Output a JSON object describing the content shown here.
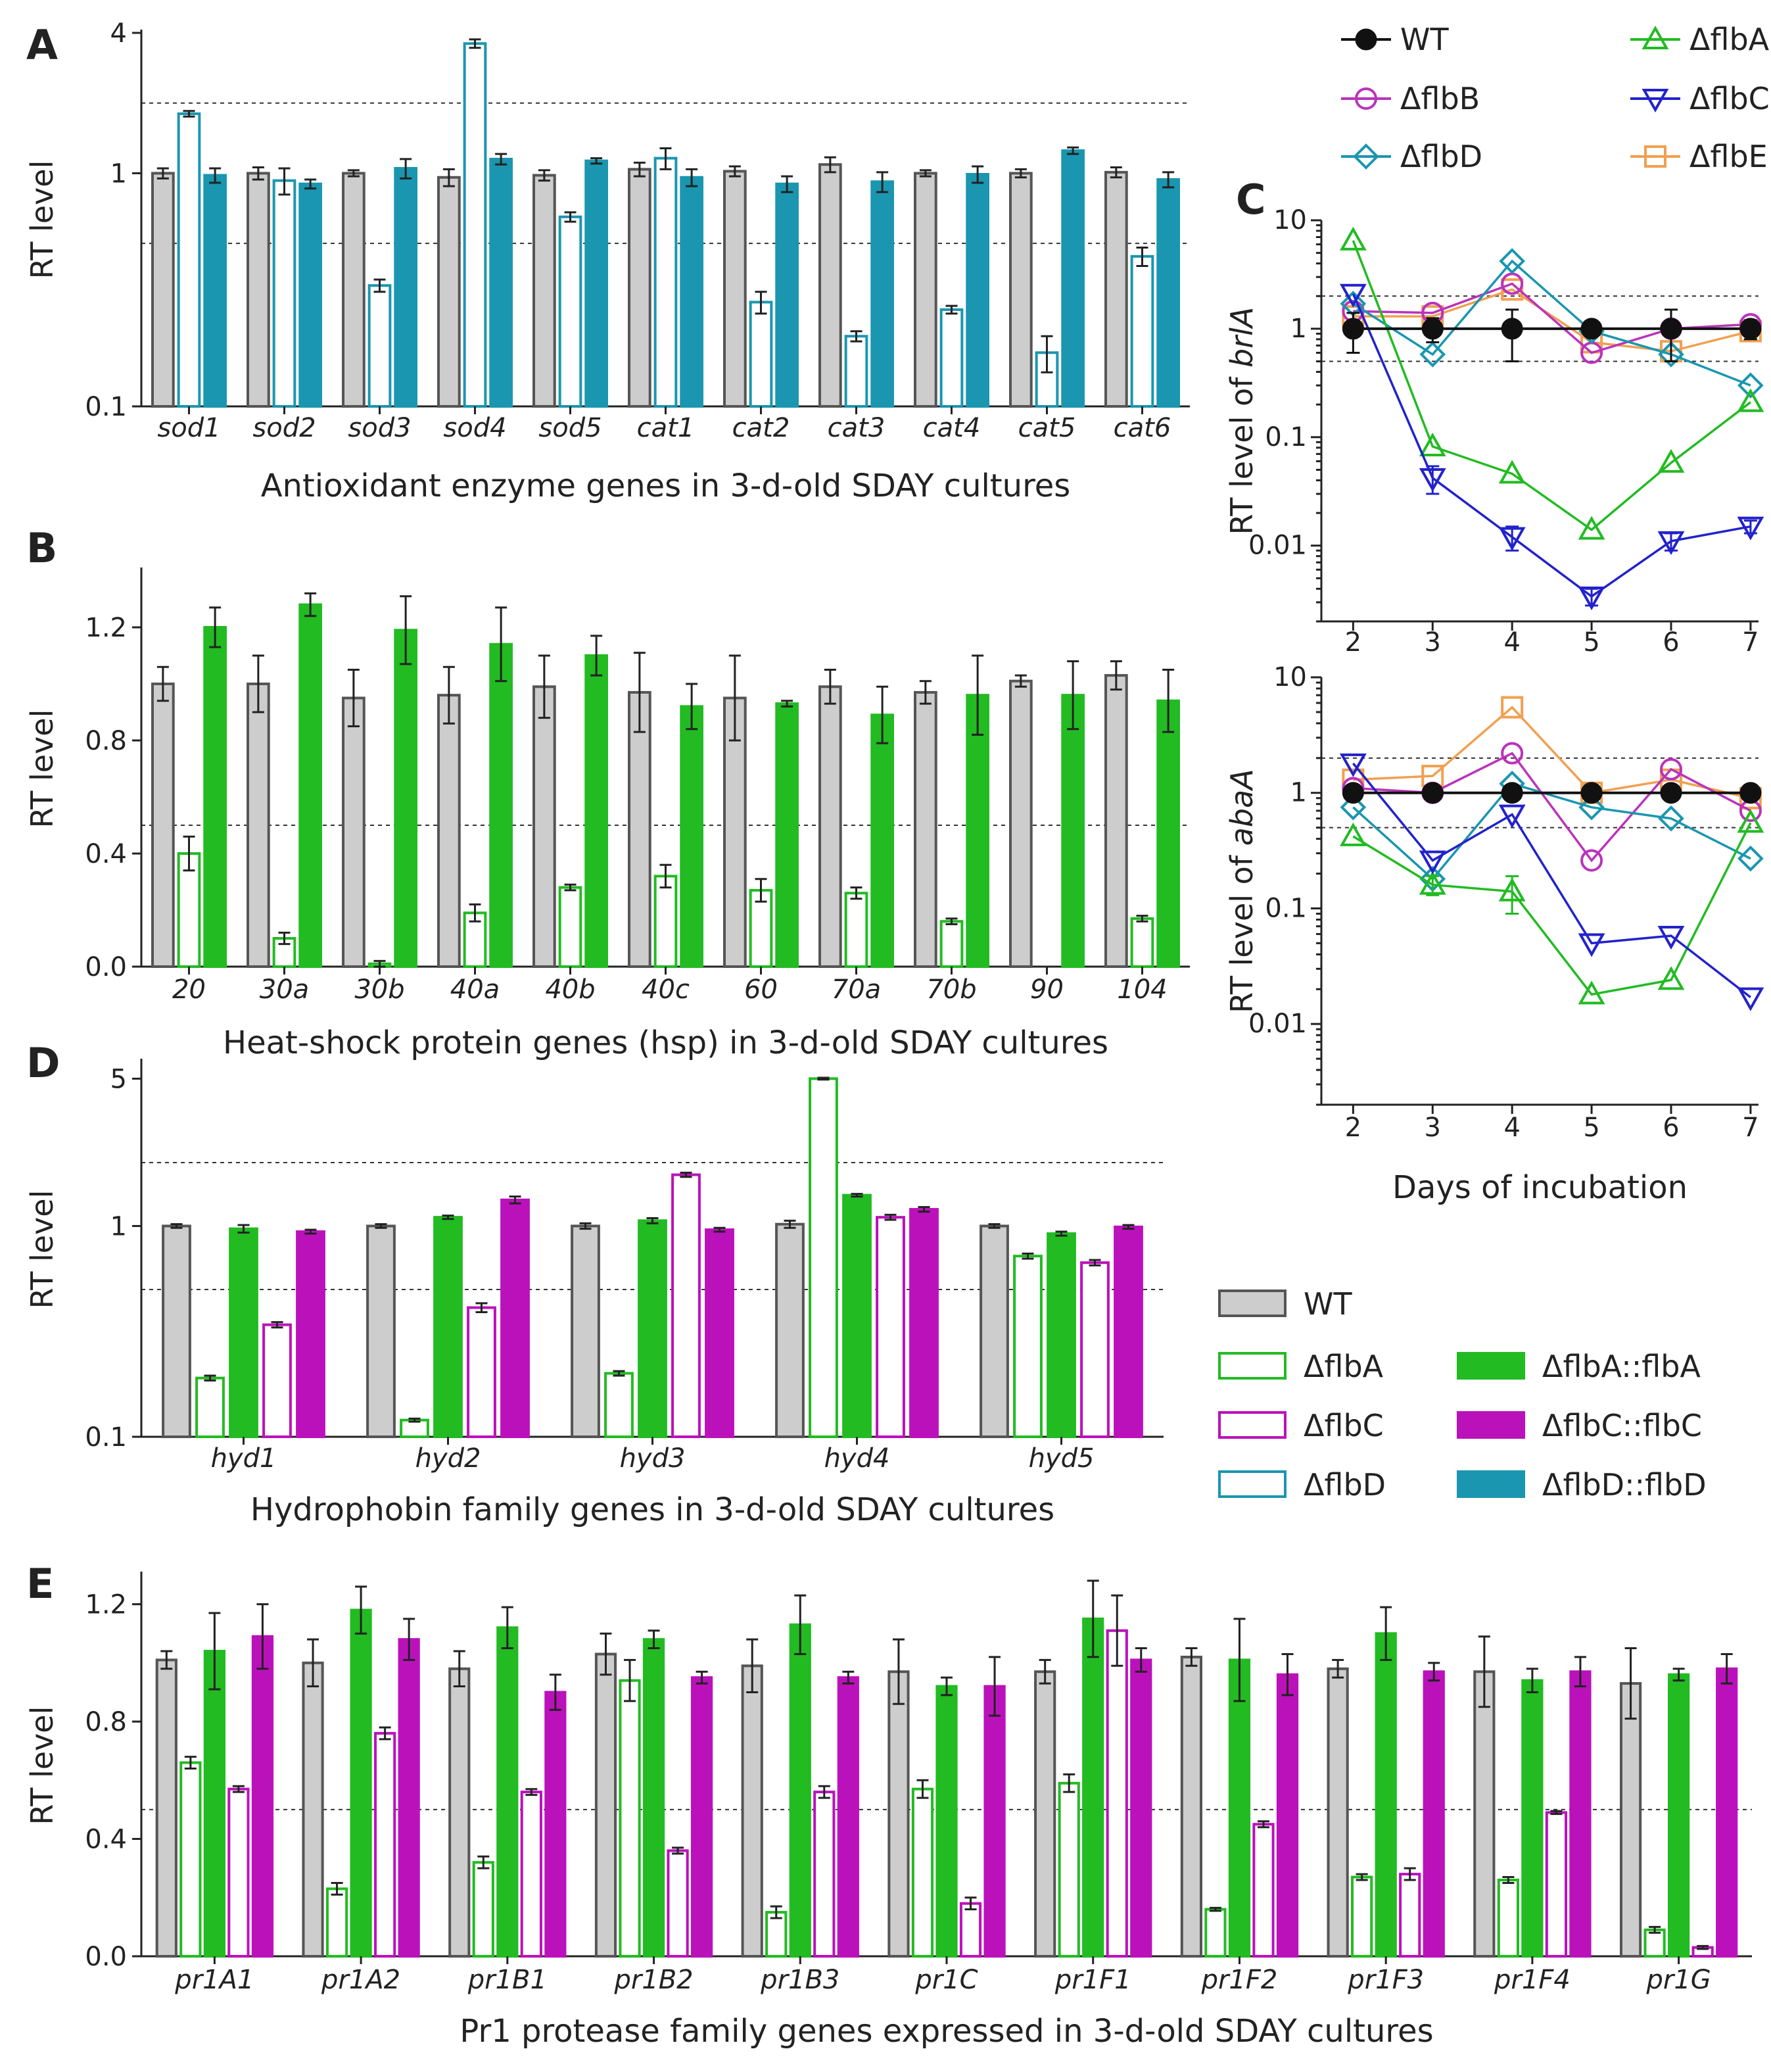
{
  "colors": {
    "WT": "#cdcdcd",
    "WT_stroke": "#555555",
    "flbA": "#22bb22",
    "flbC": "#bb11bb",
    "flbD": "#1a96b0",
    "flbB": "#bb33bb",
    "flbE": "#f0a050",
    "flbC_line": "#2222cc"
  },
  "legend_bar": {
    "items": [
      {
        "key": "WT",
        "label": "WT",
        "style": "wt"
      },
      {
        "key": "flbA",
        "label": "ΔflbA",
        "style": "open"
      },
      {
        "key": "flbC",
        "label": "ΔflbC",
        "style": "open"
      },
      {
        "key": "flbD",
        "label": "ΔflbD",
        "style": "open"
      },
      {
        "key": "flbA",
        "label": "ΔflbA::flbA",
        "style": "filled"
      },
      {
        "key": "flbC",
        "label": "ΔflbC::flbC",
        "style": "filled"
      },
      {
        "key": "flbD",
        "label": "ΔflbD::flbD",
        "style": "filled"
      }
    ]
  },
  "legend_line": {
    "items": [
      {
        "key": "WT",
        "label": "WT",
        "marker": "dot"
      },
      {
        "key": "flbB",
        "label": "ΔflbB",
        "marker": "circle"
      },
      {
        "key": "flbD",
        "label": "ΔflbD",
        "marker": "diamond"
      },
      {
        "key": "flbA",
        "label": "ΔflbA",
        "marker": "tri-up"
      },
      {
        "key": "flbC_line",
        "label": "ΔflbC",
        "marker": "tri-down"
      },
      {
        "key": "flbE",
        "label": "ΔflbE",
        "marker": "square"
      }
    ]
  },
  "chart_data": [
    {
      "panel": "A",
      "type": "bar",
      "scale": "log",
      "ylabel": "RT level",
      "ylim": [
        0.1,
        4
      ],
      "yticks": [
        "0.1",
        "1",
        "4"
      ],
      "ytick_values": [
        0.1,
        1,
        4
      ],
      "dashed": [
        0.5,
        2
      ],
      "title": "Antioxidant enzyme genes in 3-d-old SDAY cultures",
      "categories": [
        "sod1",
        "sod2",
        "sod3",
        "sod4",
        "sod5",
        "cat1",
        "cat2",
        "cat3",
        "cat4",
        "cat5",
        "cat6"
      ],
      "series": [
        {
          "name": "WT",
          "key": "WT",
          "style": "wt",
          "values": [
            1.0,
            1.0,
            1.0,
            0.96,
            0.98,
            1.04,
            1.02,
            1.09,
            1.0,
            1.0,
            1.01
          ],
          "err": [
            0.05,
            0.06,
            0.03,
            0.08,
            0.05,
            0.07,
            0.05,
            0.08,
            0.03,
            0.04,
            0.05
          ]
        },
        {
          "name": "ΔflbD",
          "key": "flbD",
          "style": "open",
          "values": [
            1.8,
            0.93,
            0.33,
            3.6,
            0.65,
            1.16,
            0.28,
            0.2,
            0.26,
            0.17,
            0.44
          ],
          "err": [
            0.05,
            0.12,
            0.02,
            0.15,
            0.03,
            0.12,
            0.03,
            0.01,
            0.01,
            0.03,
            0.04
          ]
        },
        {
          "name": "ΔflbD::flbD",
          "key": "flbD",
          "style": "filled",
          "values": [
            0.98,
            0.9,
            1.05,
            1.15,
            1.13,
            0.96,
            0.9,
            0.92,
            0.99,
            1.25,
            0.94
          ],
          "err": [
            0.07,
            0.04,
            0.1,
            0.06,
            0.03,
            0.08,
            0.07,
            0.09,
            0.08,
            0.04,
            0.07
          ]
        }
      ]
    },
    {
      "panel": "B",
      "type": "bar",
      "scale": "linear",
      "ylabel": "RT level",
      "ylim": [
        0,
        1.4
      ],
      "yticks": [
        "0.0",
        "0.4",
        "0.8",
        "1.2"
      ],
      "ytick_values": [
        0,
        0.4,
        0.8,
        1.2
      ],
      "dashed": [
        0.5
      ],
      "title": "Heat-shock protein genes (hsp) in  3-d-old SDAY cultures",
      "categories": [
        "20",
        "30a",
        "30b",
        "40a",
        "40b",
        "40c",
        "60",
        "70a",
        "70b",
        "90",
        "104"
      ],
      "series": [
        {
          "name": "WT",
          "key": "WT",
          "style": "wt",
          "values": [
            1.0,
            1.0,
            0.95,
            0.96,
            0.99,
            0.97,
            0.95,
            0.99,
            0.97,
            1.01,
            1.03
          ],
          "err": [
            0.06,
            0.1,
            0.1,
            0.1,
            0.11,
            0.14,
            0.15,
            0.06,
            0.04,
            0.02,
            0.05
          ]
        },
        {
          "name": "ΔflbA",
          "key": "flbA",
          "style": "open",
          "values": [
            0.4,
            0.1,
            0.01,
            0.19,
            0.28,
            0.32,
            0.27,
            0.26,
            0.16,
            0.0,
            0.17
          ],
          "err": [
            0.06,
            0.02,
            0.01,
            0.03,
            0.01,
            0.04,
            0.04,
            0.02,
            0.01,
            0.0,
            0.01
          ]
        },
        {
          "name": "ΔflbA::flbA",
          "key": "flbA",
          "style": "filled",
          "values": [
            1.2,
            1.28,
            1.19,
            1.14,
            1.1,
            0.92,
            0.93,
            0.89,
            0.96,
            0.96,
            0.94
          ],
          "err": [
            0.07,
            0.04,
            0.12,
            0.13,
            0.07,
            0.08,
            0.01,
            0.1,
            0.14,
            0.12,
            0.11
          ]
        }
      ]
    },
    {
      "panel": "D",
      "type": "bar",
      "scale": "log",
      "ylabel": "RT level",
      "ylim": [
        0.1,
        6
      ],
      "yticks": [
        "0.1",
        "1",
        "5"
      ],
      "ytick_values": [
        0.1,
        1,
        5
      ],
      "dashed": [
        0.5,
        2
      ],
      "title": "Hydrophobin family  genes  in 3-d-old SDAY cultures",
      "categories": [
        "hyd1",
        "hyd2",
        "hyd3",
        "hyd4",
        "hyd5"
      ],
      "series": [
        {
          "name": "WT",
          "key": "WT",
          "style": "wt",
          "values": [
            1.0,
            1.0,
            1.0,
            1.02,
            1.0
          ],
          "err": [
            0.02,
            0.02,
            0.03,
            0.04,
            0.02
          ]
        },
        {
          "name": "ΔflbA",
          "key": "flbA",
          "style": "open",
          "values": [
            0.19,
            0.12,
            0.2,
            5.0,
            0.72
          ],
          "err": [
            0.005,
            0.002,
            0.005,
            0.05,
            0.02
          ]
        },
        {
          "name": "ΔflbA::flbA",
          "key": "flbA",
          "style": "filled",
          "values": [
            0.97,
            1.1,
            1.06,
            1.4,
            0.92
          ],
          "err": [
            0.04,
            0.02,
            0.03,
            0.02,
            0.02
          ]
        },
        {
          "name": "ΔflbC",
          "key": "flbC",
          "style": "open",
          "values": [
            0.34,
            0.41,
            1.75,
            1.1,
            0.67
          ],
          "err": [
            0.01,
            0.02,
            0.04,
            0.03,
            0.02
          ]
        },
        {
          "name": "ΔflbC::flbC",
          "key": "flbC",
          "style": "filled",
          "values": [
            0.94,
            1.33,
            0.96,
            1.2,
            0.99
          ],
          "err": [
            0.02,
            0.05,
            0.02,
            0.03,
            0.02
          ]
        }
      ]
    },
    {
      "panel": "E",
      "type": "bar",
      "scale": "linear",
      "ylabel": "RT level",
      "ylim": [
        0,
        1.3
      ],
      "yticks": [
        "0.0",
        "0.4",
        "0.8",
        "1.2"
      ],
      "ytick_values": [
        0,
        0.4,
        0.8,
        1.2
      ],
      "dashed": [
        0.5
      ],
      "title": "Pr1 protease family genes expressed in 3-d-old SDAY cultures",
      "categories": [
        "pr1A1",
        "pr1A2",
        "pr1B1",
        "pr1B2",
        "pr1B3",
        "pr1C",
        "pr1F1",
        "pr1F2",
        "pr1F3",
        "pr1F4",
        "pr1G"
      ],
      "series": [
        {
          "name": "WT",
          "key": "WT",
          "style": "wt",
          "values": [
            1.01,
            1.0,
            0.98,
            1.03,
            0.99,
            0.97,
            0.97,
            1.02,
            0.98,
            0.97,
            0.93
          ],
          "err": [
            0.03,
            0.08,
            0.06,
            0.07,
            0.09,
            0.11,
            0.04,
            0.03,
            0.03,
            0.12,
            0.12
          ]
        },
        {
          "name": "ΔflbA",
          "key": "flbA",
          "style": "open",
          "values": [
            0.66,
            0.23,
            0.32,
            0.94,
            0.15,
            0.57,
            0.59,
            0.16,
            0.27,
            0.26,
            0.09
          ],
          "err": [
            0.02,
            0.02,
            0.02,
            0.07,
            0.02,
            0.03,
            0.03,
            0.005,
            0.01,
            0.01,
            0.01
          ]
        },
        {
          "name": "ΔflbA::flbA",
          "key": "flbA",
          "style": "filled",
          "values": [
            1.04,
            1.18,
            1.12,
            1.08,
            1.13,
            0.92,
            1.15,
            1.01,
            1.1,
            0.94,
            0.96
          ],
          "err": [
            0.13,
            0.08,
            0.07,
            0.03,
            0.1,
            0.03,
            0.13,
            0.14,
            0.09,
            0.04,
            0.02
          ]
        },
        {
          "name": "ΔflbC",
          "key": "flbC",
          "style": "open",
          "values": [
            0.57,
            0.76,
            0.56,
            0.36,
            0.56,
            0.18,
            1.11,
            0.45,
            0.28,
            0.49,
            0.03
          ],
          "err": [
            0.01,
            0.02,
            0.01,
            0.01,
            0.02,
            0.02,
            0.12,
            0.01,
            0.02,
            0.005,
            0.005
          ]
        },
        {
          "name": "ΔflbC::flbC",
          "key": "flbC",
          "style": "filled",
          "values": [
            1.09,
            1.08,
            0.9,
            0.95,
            0.95,
            0.92,
            1.01,
            0.96,
            0.97,
            0.97,
            0.98
          ],
          "err": [
            0.11,
            0.07,
            0.06,
            0.02,
            0.02,
            0.1,
            0.04,
            0.07,
            0.03,
            0.05,
            0.05
          ]
        }
      ]
    },
    {
      "panel": "C1",
      "type": "line",
      "scale": "log",
      "ylabel": "RT level of brlA",
      "ylabel_prefix": "RT level of ",
      "ylabel_gene": "brlA",
      "ylim": [
        0.002,
        10
      ],
      "xlim": [
        1.6,
        7.1
      ],
      "yticks": [
        "0.01",
        "0.1",
        "1",
        "10"
      ],
      "ytick_values": [
        0.01,
        0.1,
        1,
        10
      ],
      "x": [
        2,
        3,
        4,
        5,
        6,
        7
      ],
      "xticks": [
        "2",
        "3",
        "4",
        "5",
        "6",
        "7"
      ],
      "dashed": [
        0.5,
        2
      ],
      "series": [
        {
          "name": "ΔflbE",
          "key": "flbE",
          "marker": "square",
          "values": [
            1.3,
            1.3,
            2.3,
            0.75,
            0.62,
            0.95
          ],
          "err": []
        },
        {
          "name": "ΔflbB",
          "key": "flbB",
          "marker": "circle",
          "values": [
            1.45,
            1.4,
            2.6,
            0.6,
            1.0,
            1.1
          ],
          "err": []
        },
        {
          "name": "ΔflbD",
          "key": "flbD",
          "marker": "diamond",
          "values": [
            1.7,
            0.58,
            4.2,
            0.95,
            0.58,
            0.3
          ],
          "err": []
        },
        {
          "name": "ΔflbA",
          "key": "flbA",
          "marker": "tri-up",
          "values": [
            6.5,
            0.082,
            0.046,
            0.014,
            0.058,
            0.21
          ],
          "err": []
        },
        {
          "name": "ΔflbC",
          "key": "flbC_line",
          "marker": "tri-down",
          "values": [
            2.1,
            0.042,
            0.012,
            0.0034,
            0.011,
            0.015
          ],
          "err": [
            0,
            0.012,
            0.003,
            0.0006,
            0.002,
            0.002
          ]
        },
        {
          "name": "WT",
          "key": "WT",
          "marker": "dot",
          "values": [
            1.0,
            1.0,
            1.0,
            1.0,
            1.0,
            1.0
          ],
          "err": [
            0.4,
            0.25,
            0.5,
            0.1,
            0.5,
            0.2
          ]
        }
      ]
    },
    {
      "panel": "C2",
      "type": "line",
      "scale": "log",
      "ylabel": "RT level of abaA",
      "ylabel_prefix": "RT level of ",
      "ylabel_gene": "abaA",
      "ylim": [
        0.002,
        10
      ],
      "xlim": [
        1.6,
        7.1
      ],
      "yticks": [
        "0.01",
        "0.1",
        "1",
        "10"
      ],
      "ytick_values": [
        0.01,
        0.1,
        1,
        10
      ],
      "x": [
        2,
        3,
        4,
        5,
        6,
        7
      ],
      "xticks": [
        "2",
        "3",
        "4",
        "5",
        "6",
        "7"
      ],
      "dashed": [
        0.5,
        2
      ],
      "xlabel": "Days of incubation",
      "series": [
        {
          "name": "ΔflbE",
          "key": "flbE",
          "marker": "square",
          "values": [
            1.3,
            1.4,
            5.5,
            1.0,
            1.3,
            0.9
          ],
          "err": []
        },
        {
          "name": "ΔflbB",
          "key": "flbB",
          "marker": "circle",
          "values": [
            1.1,
            1.0,
            2.2,
            0.26,
            1.6,
            0.7
          ],
          "err": []
        },
        {
          "name": "ΔflbD",
          "key": "flbD",
          "marker": "diamond",
          "values": [
            0.75,
            0.18,
            1.2,
            0.75,
            0.6,
            0.27
          ],
          "err": []
        },
        {
          "name": "ΔflbA",
          "key": "flbA",
          "marker": "tri-up",
          "values": [
            0.42,
            0.16,
            0.14,
            0.018,
            0.024,
            0.55
          ],
          "err": [
            0,
            0.03,
            0.05,
            0,
            0,
            0
          ]
        },
        {
          "name": "ΔflbC",
          "key": "flbC_line",
          "marker": "tri-down",
          "values": [
            1.8,
            0.26,
            0.65,
            0.05,
            0.058,
            0.017
          ],
          "err": []
        },
        {
          "name": "WT",
          "key": "WT",
          "marker": "dot",
          "values": [
            1.0,
            1.0,
            1.0,
            1.0,
            1.0,
            1.0
          ],
          "err": [
            0.1,
            0.1,
            0.1,
            0.1,
            0.1,
            0.1
          ]
        }
      ]
    }
  ]
}
